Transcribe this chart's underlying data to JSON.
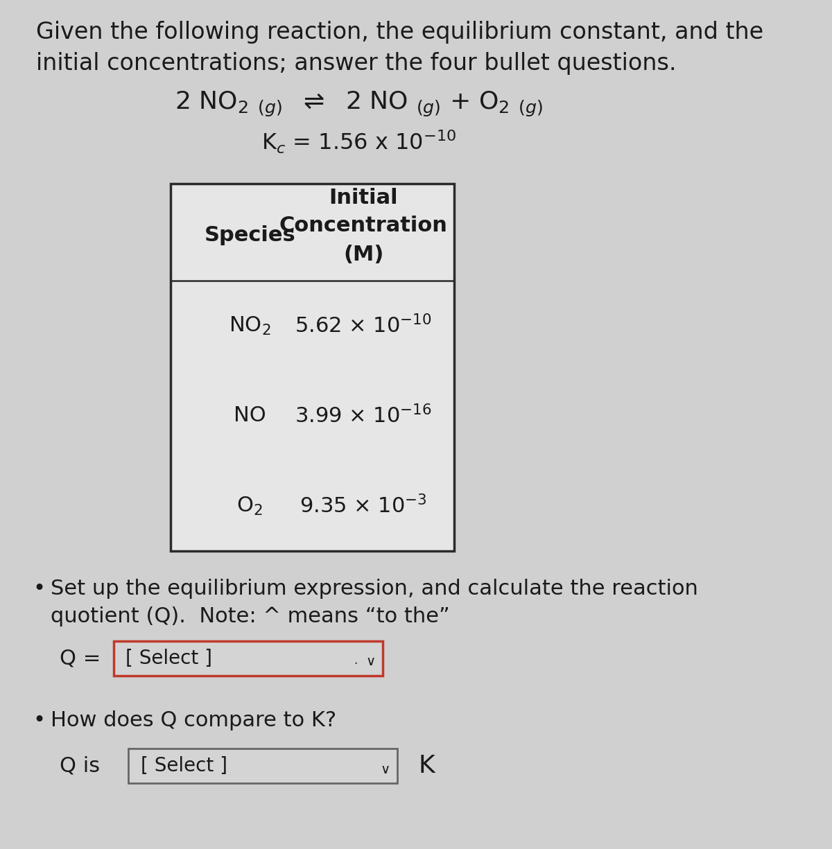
{
  "bg_color": "#d0d0d0",
  "table_bg": "#e8e8e8",
  "title_line1": "Given the following reaction, the equilibrium constant, and the",
  "title_line2": "initial concentrations; answer the four bullet questions.",
  "table_header_col1": "Species",
  "table_header_col2_line1": "Initial",
  "table_header_col2_line2": "Concentration",
  "table_header_col2_line3": "(M)",
  "table_rows": [
    [
      "NO₂",
      "5.62 × 10⁻¹⁰"
    ],
    [
      "NO",
      "3.99 × 10⁻¹⁶"
    ],
    [
      "O₂",
      "9.35 × 10⁻³"
    ]
  ],
  "bullet1_line1": "Set up the equilibrium expression, and calculate the reaction",
  "bullet1_line2": "quotient (Q).  Note: ^ means “to the”",
  "bullet2": "How does Q compare to K?",
  "select_text": "[ Select ]",
  "text_color": "#1a1a1a",
  "table_border_color": "#2a2a2a",
  "select_box1_border": "#c0392b",
  "select_box2_border": "#666666",
  "font_size_title": 24,
  "font_size_reaction": 26,
  "font_size_kc": 23,
  "font_size_table": 22,
  "font_size_body": 22,
  "font_size_select": 20
}
